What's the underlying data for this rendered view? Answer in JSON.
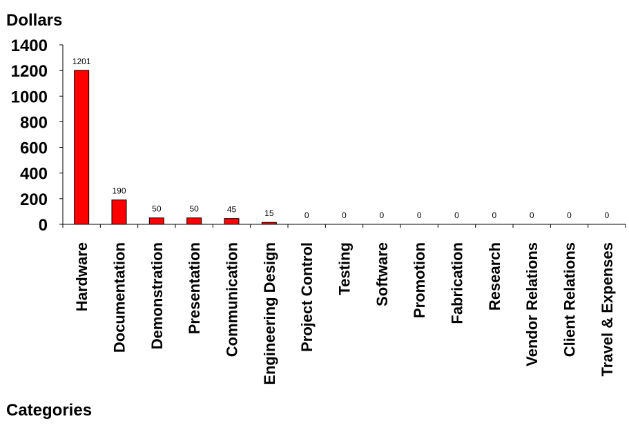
{
  "chart_data": {
    "type": "bar",
    "ylabel": "Dollars",
    "xlabel": "Categories",
    "categories": [
      "Hardware",
      "Documentation",
      "Demonstration",
      "Presentation",
      "Communication",
      "Engineering Design",
      "Project Control",
      "Testing",
      "Software",
      "Promotion",
      "Fabrication",
      "Research",
      "Vendor Relations",
      "Client Relations",
      "Travel & Expenses"
    ],
    "values": [
      1201,
      190,
      50,
      50,
      45,
      15,
      0,
      0,
      0,
      0,
      0,
      0,
      0,
      0,
      0
    ],
    "ylim": [
      0,
      1400
    ],
    "yticks": [
      0,
      200,
      400,
      600,
      800,
      1000,
      1200,
      1400
    ],
    "bar_color": "#ff0000",
    "bar_edge_color": "#000000",
    "grid": false,
    "legend": "none"
  }
}
